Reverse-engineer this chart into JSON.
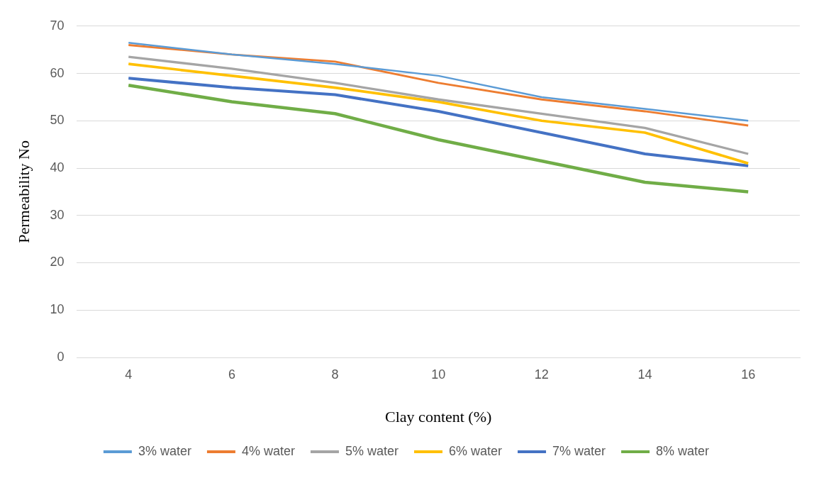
{
  "chart_data": {
    "type": "line",
    "xlabel": "Clay content (%)",
    "ylabel": "Permeability No",
    "categories": [
      "4",
      "6",
      "8",
      "10",
      "12",
      "14",
      "16"
    ],
    "ylim": [
      0,
      70
    ],
    "yticks": [
      0,
      10,
      20,
      30,
      40,
      50,
      60,
      70
    ],
    "grid": "y",
    "legend": "bottom",
    "marker": "none",
    "line_style": "solid",
    "series": [
      {
        "name": "3% water",
        "color": "#5b9bd5",
        "values": [
          66.5,
          64,
          62,
          59.5,
          55,
          52.5,
          50
        ]
      },
      {
        "name": "4% water",
        "color": "#ed7d31",
        "values": [
          66,
          64,
          62.5,
          58,
          54.5,
          52,
          49
        ]
      },
      {
        "name": "5% water",
        "color": "#a5a5a5",
        "values": [
          63.5,
          61,
          58,
          54.5,
          51.5,
          48.5,
          43
        ]
      },
      {
        "name": "6% water",
        "color": "#ffc000",
        "values": [
          62,
          59.5,
          57,
          54,
          50,
          47.5,
          41
        ]
      },
      {
        "name": "7% water",
        "color": "#4472c4",
        "values": [
          59,
          57,
          55.5,
          52,
          47.5,
          43,
          40.5
        ]
      },
      {
        "name": "8% water",
        "color": "#70ad47",
        "values": [
          57.5,
          54,
          51.5,
          46,
          41.5,
          37,
          35
        ]
      }
    ]
  }
}
